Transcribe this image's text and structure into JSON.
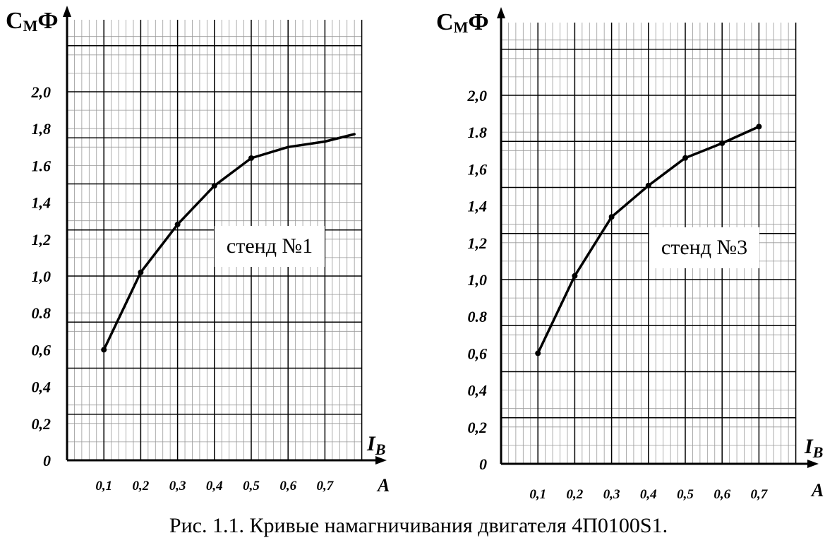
{
  "caption": "Рис. 1.1. Кривые намагничивания двигателя 4П0100S1.",
  "chart_data": [
    {
      "type": "line",
      "annotation": "стенд №1",
      "ylabel": "С",
      "ylabel_sub": "М",
      "ylabel_suffix": "Ф",
      "xlabel": "I",
      "xlabel_sub": "В",
      "xunit": "А",
      "x_ticks": [
        "0,1",
        "0,2",
        "0,3",
        "0,4",
        "0,5",
        "0,6",
        "0,7"
      ],
      "y_ticks": [
        "0",
        "0,2",
        "0,4",
        "0,6",
        "0.8",
        "1,0",
        "1,2",
        "1,4",
        "1.6",
        "1,8",
        "2,0"
      ],
      "y_tick_values": [
        0,
        0.2,
        0.4,
        0.6,
        0.8,
        1.0,
        1.2,
        1.4,
        1.6,
        1.8,
        2.0
      ],
      "xlim": [
        0,
        0.8
      ],
      "ylim": [
        0,
        2.4
      ],
      "grid": true,
      "series": [
        {
          "x": [
            0.1,
            0.2,
            0.3,
            0.4,
            0.5,
            0.6,
            0.7,
            0.78
          ],
          "y": [
            0.6,
            1.02,
            1.28,
            1.49,
            1.64,
            1.7,
            1.73,
            1.77
          ],
          "markers": [
            0.1,
            0.2,
            0.3,
            0.4,
            0.5
          ]
        }
      ]
    },
    {
      "type": "line",
      "annotation": "стенд №3",
      "ylabel": "С",
      "ylabel_sub": "М",
      "ylabel_suffix": "Ф",
      "xlabel": "I",
      "xlabel_sub": "В",
      "xunit": "А",
      "x_ticks": [
        "0,1",
        "0,2",
        "0,3",
        "0,4",
        "0,5",
        "0,6",
        "0,7"
      ],
      "y_ticks": [
        "0",
        "0,2",
        "0,4",
        "0,6",
        "0.8",
        "1,0",
        "1,2",
        "1,4",
        "1,6",
        "1.8",
        "2,0"
      ],
      "y_tick_values": [
        0,
        0.2,
        0.4,
        0.6,
        0.8,
        1.0,
        1.2,
        1.4,
        1.6,
        1.8,
        2.0
      ],
      "xlim": [
        0,
        0.8
      ],
      "ylim": [
        0,
        2.4
      ],
      "grid": true,
      "series": [
        {
          "x": [
            0.1,
            0.2,
            0.3,
            0.4,
            0.5,
            0.6,
            0.7
          ],
          "y": [
            0.6,
            1.02,
            1.34,
            1.51,
            1.66,
            1.74,
            1.83
          ],
          "markers": [
            0.1,
            0.2,
            0.3,
            0.4,
            0.5,
            0.6,
            0.7
          ]
        }
      ]
    }
  ]
}
